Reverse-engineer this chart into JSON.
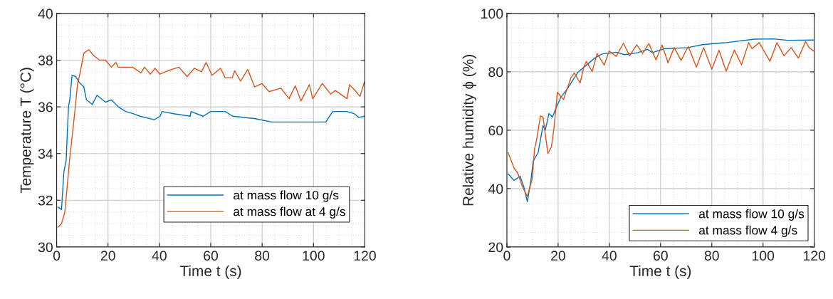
{
  "chart_data": [
    {
      "type": "line",
      "xlabel": "Time t (s)",
      "ylabel": "Temperature T (°C)",
      "xlim": [
        0,
        120
      ],
      "ylim": [
        30,
        40
      ],
      "xticks": [
        0,
        20,
        40,
        60,
        80,
        100,
        120
      ],
      "yticks": [
        30,
        32,
        34,
        36,
        38,
        40
      ],
      "grid": true,
      "legend": "bottom right",
      "series": [
        {
          "name": "at mass flow 10 g/s",
          "color": "#0072bd",
          "x": [
            0.5,
            1.9,
            2.8,
            3.7,
            4.6,
            5.1,
            6,
            7.4,
            8.8,
            10.6,
            11.6,
            13.9,
            15.7,
            19,
            21.3,
            24,
            26.9,
            30,
            32.4,
            38,
            40.3,
            41,
            46,
            52,
            52.3,
            57,
            60,
            65.7,
            68.5,
            77,
            83.7,
            104.8,
            107.5,
            113,
            116,
            117.6,
            120
          ],
          "values": [
            31.7,
            31.6,
            33.2,
            33.7,
            36.0,
            36.3,
            37.35,
            37.3,
            37.05,
            36.85,
            36.3,
            36.1,
            36.5,
            36.2,
            36.3,
            36.0,
            35.8,
            35.7,
            35.6,
            35.45,
            35.6,
            35.8,
            35.7,
            35.6,
            35.8,
            35.6,
            35.8,
            35.8,
            35.6,
            35.5,
            35.35,
            35.35,
            35.8,
            35.8,
            35.7,
            35.55,
            35.6
          ]
        },
        {
          "name": "at mass flow at 4 g/s",
          "color": "#d95319",
          "x": [
            0.5,
            1.9,
            3.2,
            5.1,
            6.9,
            8.1,
            9.3,
            10.6,
            12.5,
            14.4,
            16.7,
            19,
            21.3,
            23.1,
            24,
            29.6,
            32.8,
            34.2,
            36.5,
            38.3,
            40.2,
            43.4,
            47.6,
            50.8,
            53.6,
            56.4,
            58.2,
            60.5,
            63.8,
            65.6,
            68.4,
            69.3,
            71.6,
            74.4,
            77.1,
            79.9,
            82.7,
            87.3,
            90.5,
            92.9,
            95.1,
            98.4,
            99.7,
            103.4,
            106.7,
            108.5,
            113.1,
            114,
            115.8,
            118.1,
            119.8
          ],
          "values": [
            30.85,
            31.0,
            31.5,
            33.8,
            35.6,
            36.95,
            37.55,
            38.3,
            38.45,
            38.2,
            38.0,
            38.0,
            37.7,
            37.9,
            37.7,
            37.7,
            37.45,
            37.7,
            37.4,
            37.65,
            37.4,
            37.55,
            37.7,
            37.3,
            37.65,
            37.5,
            37.9,
            37.35,
            37.65,
            37.25,
            37.25,
            37.55,
            37.1,
            37.6,
            36.85,
            37.0,
            36.65,
            36.8,
            36.35,
            36.9,
            36.25,
            36.95,
            36.35,
            37.0,
            36.55,
            36.7,
            36.35,
            36.95,
            36.75,
            36.45,
            37.05
          ]
        }
      ]
    },
    {
      "type": "line",
      "xlabel": "Time t (s)",
      "ylabel": "Relative humidity ϕ (%)",
      "xlim": [
        0,
        120
      ],
      "ylim": [
        20,
        100
      ],
      "xticks": [
        0,
        20,
        40,
        60,
        80,
        100,
        120
      ],
      "yticks": [
        20,
        40,
        60,
        80,
        100
      ],
      "grid": true,
      "legend": "bottom right",
      "series": [
        {
          "name": "at mass flow 10 g/s",
          "color": "#0072bd",
          "x": [
            0.5,
            2.8,
            5.2,
            6.6,
            8,
            9.4,
            10.3,
            12.2,
            14.1,
            15,
            16.4,
            17.8,
            19.2,
            21.1,
            23.9,
            27.7,
            30.5,
            34.3,
            37.1,
            42.7,
            46,
            51.2,
            54.9,
            56.8,
            61.5,
            70.7,
            76.3,
            85.6,
            96.7,
            104,
            109.6,
            119.8
          ],
          "values": [
            45.0,
            42.8,
            44.2,
            40.6,
            35.5,
            43.0,
            49.5,
            52.3,
            61.6,
            60.0,
            65.7,
            64.5,
            67.7,
            71.3,
            74.6,
            79.8,
            81.9,
            84.7,
            86.1,
            86.7,
            85.9,
            86.6,
            87.7,
            86.6,
            87.9,
            88.3,
            89.3,
            90.0,
            91.2,
            91.3,
            90.8,
            90.9
          ]
        },
        {
          "name": "at mass flow 4 g/s",
          "color": "#d95319",
          "x": [
            0.5,
            2.8,
            4.2,
            6.1,
            8,
            9.9,
            10.8,
            11.7,
            13.1,
            14.1,
            16,
            17.4,
            18.5,
            19.7,
            22.1,
            24.9,
            26.3,
            28.6,
            30,
            31,
            33.3,
            35.2,
            38,
            39.9,
            42.7,
            45.5,
            47.9,
            50.7,
            53,
            55.4,
            58.2,
            60.6,
            62.9,
            65.3,
            68,
            70.8,
            74,
            76.8,
            80,
            82.8,
            85.6,
            88.8,
            91.6,
            94.4,
            95.7,
            98.5,
            102.7,
            105.4,
            108.2,
            111,
            113.8,
            116.6,
            118,
            119.8
          ],
          "values": [
            52.3,
            47.0,
            45.4,
            40.6,
            37.3,
            43.4,
            53.5,
            57.2,
            64.9,
            64.5,
            52.0,
            54.3,
            61.6,
            73.0,
            70.5,
            77.8,
            79.6,
            76.2,
            81.5,
            83.6,
            80.1,
            86.3,
            82.3,
            87.1,
            85.3,
            89.8,
            85.5,
            89.3,
            86.3,
            89.7,
            84.1,
            89.2,
            83.1,
            88.3,
            83.9,
            88.7,
            81.6,
            88.3,
            80.9,
            87.4,
            80.2,
            87.5,
            82.4,
            90.0,
            87.9,
            90.0,
            83.6,
            90.0,
            85.5,
            88.3,
            84.7,
            90.4,
            88.3,
            87.1
          ]
        }
      ]
    }
  ]
}
